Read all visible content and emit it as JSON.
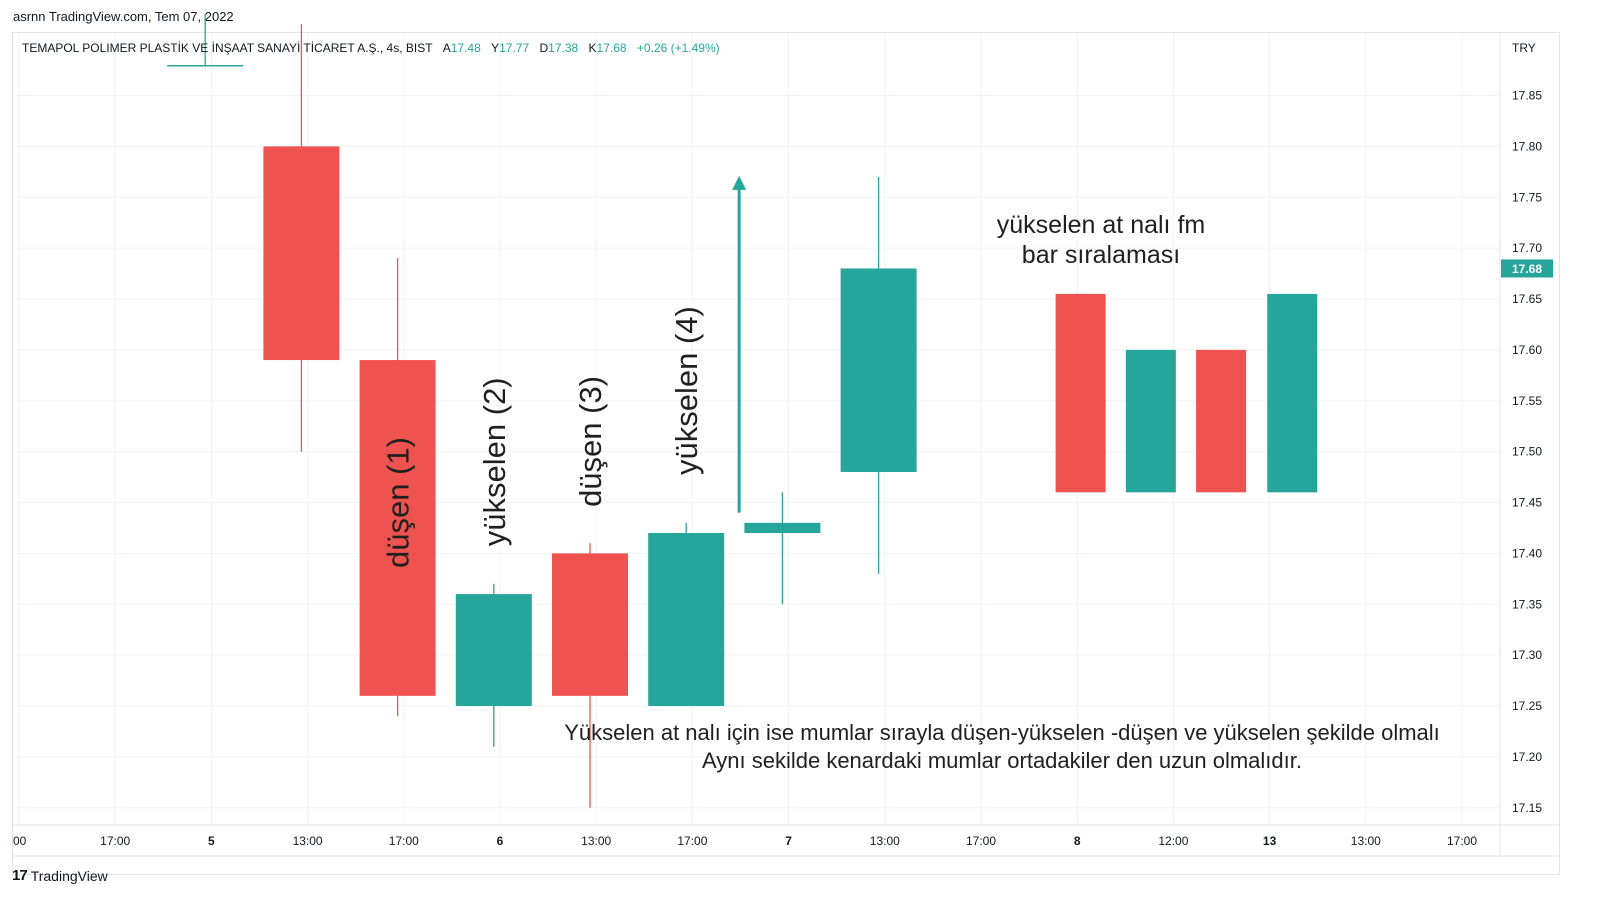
{
  "topline": "asrnn TradingView.com, Tem 07, 2022",
  "legend": {
    "symbol": "TEMAPOL POLIMER PLASTİK VE İNŞAAT SANAYİ TİCARET A.Ş., 4s, BIST",
    "open_label": "A",
    "open": "17.48",
    "high_label": "Y",
    "high": "17.77",
    "low_label": "D",
    "low": "17.38",
    "close_label": "K",
    "close": "17.68",
    "change": "+0.26 (+1.49%)"
  },
  "footer": {
    "brand": "TradingView",
    "brand_mark": "17"
  },
  "colors": {
    "up": "#26a69a",
    "down": "#ef5350",
    "grid": "#f0f3fa",
    "axis_text": "#131722",
    "price_tag": "#26a69a"
  },
  "chart_data": {
    "type": "candlestick",
    "currency": "TRY",
    "ylim": [
      17.12,
      17.92
    ],
    "y_ticks": [
      "17.85",
      "17.80",
      "17.75",
      "17.70",
      "17.65",
      "17.60",
      "17.55",
      "17.50",
      "17.45",
      "17.40",
      "17.35",
      "17.30",
      "17.25",
      "17.20",
      "17.15"
    ],
    "last_price": "17.68",
    "x_ticks": [
      "00",
      "17:00",
      "5",
      "13:00",
      "17:00",
      "6",
      "13:00",
      "17:00",
      "7",
      "13:00",
      "17:00",
      "8",
      "12:00",
      "13",
      "13:00",
      "17:00"
    ],
    "bold_x_ticks": [
      "5",
      "6",
      "7",
      "8",
      "13"
    ],
    "candles": [
      {
        "slot": 1,
        "open": 17.88,
        "high": 17.93,
        "low": 17.88,
        "close": 17.88
      },
      {
        "slot": 2,
        "open": 17.8,
        "high": 17.92,
        "low": 17.5,
        "close": 17.59
      },
      {
        "slot": 3,
        "open": 17.59,
        "high": 17.69,
        "low": 17.24,
        "close": 17.26
      },
      {
        "slot": 4,
        "open": 17.25,
        "high": 17.37,
        "low": 17.21,
        "close": 17.36
      },
      {
        "slot": 5,
        "open": 17.4,
        "high": 17.41,
        "low": 17.15,
        "close": 17.26
      },
      {
        "slot": 6,
        "open": 17.25,
        "high": 17.43,
        "low": 17.25,
        "close": 17.42
      },
      {
        "slot": 7,
        "open": 17.42,
        "high": 17.46,
        "low": 17.35,
        "close": 17.43
      },
      {
        "slot": 8,
        "open": 17.48,
        "high": 17.77,
        "low": 17.38,
        "close": 17.68
      }
    ],
    "candle_labels": [
      {
        "slot": 3,
        "text": "düşen (1)",
        "price": 17.45
      },
      {
        "slot": 4,
        "text": "yükselen (2)",
        "price": 17.49
      },
      {
        "slot": 5,
        "text": "düşen (3)",
        "price": 17.51
      },
      {
        "slot": 6,
        "text": "yükselen (4)",
        "price": 17.56
      }
    ],
    "arrow": {
      "slot": 6.55,
      "from": 17.44,
      "to": 17.77
    },
    "illustration": {
      "title_line1": "yükselen at nalı fm",
      "title_line2": "bar sıralaması",
      "bars": [
        {
          "pos": 10.1,
          "color": "down",
          "top": 17.655,
          "bottom": 17.46
        },
        {
          "pos": 10.83,
          "color": "up",
          "top": 17.6,
          "bottom": 17.46
        },
        {
          "pos": 11.56,
          "color": "down",
          "top": 17.6,
          "bottom": 17.46
        },
        {
          "pos": 12.3,
          "color": "up",
          "top": 17.655,
          "bottom": 17.46
        }
      ]
    },
    "annotation_line1": "Yükselen at nalı için ise mumlar sırayla düşen-yükselen -düşen ve yükselen şekilde olmalı",
    "annotation_line2": "Aynı sekilde kenardaki mumlar ortadakiler den uzun olmalıdır."
  }
}
